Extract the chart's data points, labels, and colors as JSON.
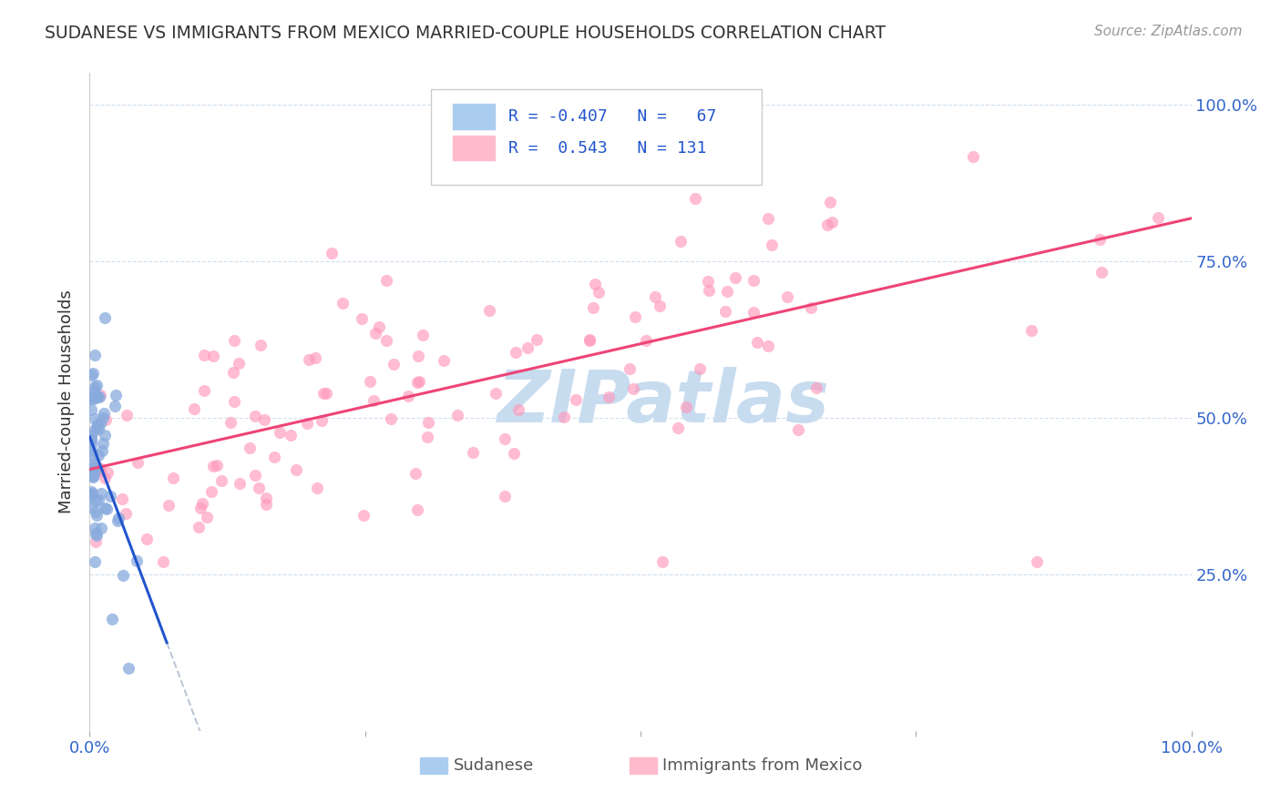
{
  "title": "SUDANESE VS IMMIGRANTS FROM MEXICO MARRIED-COUPLE HOUSEHOLDS CORRELATION CHART",
  "source": "Source: ZipAtlas.com",
  "ylabel": "Married-couple Households",
  "color_blue_dot": "#88AADD",
  "color_pink_dot": "#FF99BB",
  "color_blue_line": "#2255CC",
  "color_pink_line": "#EE4477",
  "color_blue_dash": "#AABBCC",
  "color_text": "#333333",
  "color_blue_label": "#3366CC",
  "color_grid": "#CCDDEE",
  "color_legend_border": "#CCCCCC",
  "watermark_color": "#C8DCF0",
  "legend_text_color": "#2255CC",
  "bottom_legend_color": "#555555",
  "sud_R": -0.407,
  "sud_N": 67,
  "mex_R": 0.543,
  "mex_N": 131,
  "xlim": [
    0.0,
    1.0
  ],
  "ylim": [
    0.0,
    1.05
  ],
  "xticks": [
    0.0,
    0.25,
    0.5,
    0.75,
    1.0
  ],
  "yticks_right": [
    0.25,
    0.5,
    0.75,
    1.0
  ],
  "ytick_labels": [
    "25.0%",
    "50.0%",
    "75.0%",
    "100.0%"
  ],
  "xtick_labels_show": [
    "0.0%",
    "100.0%"
  ],
  "sud_seed": 12,
  "mex_seed": 7
}
